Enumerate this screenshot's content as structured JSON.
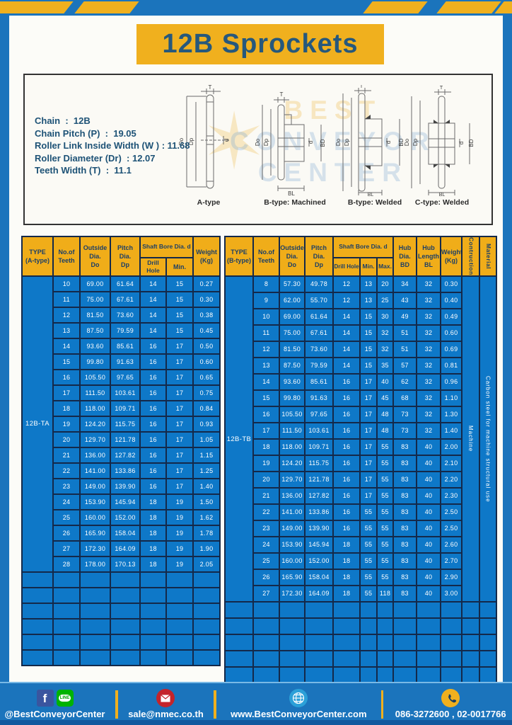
{
  "header": {
    "title": "12B Sprockets"
  },
  "specs": {
    "lines": [
      "Chain  :  12B",
      "Chain Pitch (P)  :  19.05",
      "Roller Link Inside Width (W ) : 11.68",
      "Roller Diameter (Dr)  : 12.07",
      "Teeth Width (T)  :  11.1"
    ]
  },
  "diagrams": {
    "labels": [
      "A-type",
      "B-type: Machined",
      "B-type: Welded",
      "C-type: Welded"
    ],
    "dims": {
      "t": "T",
      "do": "Do",
      "dp": "Dp",
      "d": "d",
      "bd": "BD",
      "bl": "BL"
    },
    "watermark": [
      "BEST",
      "CONVEYOR",
      "CENTER"
    ],
    "watermark_star": "✶"
  },
  "table_a": {
    "headers": {
      "type": [
        "TYPE",
        "(A-type)"
      ],
      "teeth": [
        "No.of",
        "Teeth"
      ],
      "outside": [
        "Outside",
        "Dia.",
        "Do"
      ],
      "pitch": [
        "Pitch Dia.",
        "Dp"
      ],
      "shaft_bore": "Shaft Bore Dia. d",
      "drill": "Drill Hole",
      "min": "Min.",
      "weight": [
        "Weight",
        "(Kg)"
      ]
    },
    "type_value": "12B-TA",
    "rows": [
      [
        "10",
        "69.00",
        "61.64",
        "14",
        "15",
        "0.27"
      ],
      [
        "11",
        "75.00",
        "67.61",
        "14",
        "15",
        "0.30"
      ],
      [
        "12",
        "81.50",
        "73.60",
        "14",
        "15",
        "0.38"
      ],
      [
        "13",
        "87.50",
        "79.59",
        "14",
        "15",
        "0.45"
      ],
      [
        "14",
        "93.60",
        "85.61",
        "16",
        "17",
        "0.50"
      ],
      [
        "15",
        "99.80",
        "91.63",
        "16",
        "17",
        "0.60"
      ],
      [
        "16",
        "105.50",
        "97.65",
        "16",
        "17",
        "0.65"
      ],
      [
        "17",
        "111.50",
        "103.61",
        "16",
        "17",
        "0.75"
      ],
      [
        "18",
        "118.00",
        "109.71",
        "16",
        "17",
        "0.84"
      ],
      [
        "19",
        "124.20",
        "115.75",
        "16",
        "17",
        "0.93"
      ],
      [
        "20",
        "129.70",
        "121.78",
        "16",
        "17",
        "1.05"
      ],
      [
        "21",
        "136.00",
        "127.82",
        "16",
        "17",
        "1.15"
      ],
      [
        "22",
        "141.00",
        "133.86",
        "16",
        "17",
        "1.25"
      ],
      [
        "23",
        "149.00",
        "139.90",
        "16",
        "17",
        "1.40"
      ],
      [
        "24",
        "153.90",
        "145.94",
        "18",
        "19",
        "1.50"
      ],
      [
        "25",
        "160.00",
        "152.00",
        "18",
        "19",
        "1.62"
      ],
      [
        "26",
        "165.90",
        "158.04",
        "18",
        "19",
        "1.78"
      ],
      [
        "27",
        "172.30",
        "164.09",
        "18",
        "19",
        "1.90"
      ],
      [
        "28",
        "178.00",
        "170.13",
        "18",
        "19",
        "2.05"
      ]
    ],
    "empty_rows": 6
  },
  "table_b": {
    "headers": {
      "type": [
        "TYPE",
        "(B-type)"
      ],
      "teeth": [
        "No.of",
        "Teeth"
      ],
      "outside": [
        "Outside",
        "Dia.",
        "Do"
      ],
      "pitch": [
        "Pitch Dia.",
        "Dp"
      ],
      "shaft_bore": "Shaft Bore Dia. d",
      "drill": "Drill Hole",
      "min": "Min.",
      "max": "Max.",
      "hub_dia": [
        "Hub Dia.",
        "BD"
      ],
      "hub_length": [
        "Hub",
        "Length",
        "BL"
      ],
      "weight": [
        "Weight",
        "(Kg)"
      ],
      "construction": "Contruction",
      "material": "Material"
    },
    "type_value": "12B-TB",
    "construction_value": "Machine",
    "material_value": "Carbon steel for machine structural use",
    "rows": [
      [
        "8",
        "57.30",
        "49.78",
        "12",
        "13",
        "20",
        "34",
        "32",
        "0.30"
      ],
      [
        "9",
        "62.00",
        "55.70",
        "12",
        "13",
        "25",
        "43",
        "32",
        "0.40"
      ],
      [
        "10",
        "69.00",
        "61.64",
        "14",
        "15",
        "30",
        "49",
        "32",
        "0.49"
      ],
      [
        "11",
        "75.00",
        "67.61",
        "14",
        "15",
        "32",
        "51",
        "32",
        "0.60"
      ],
      [
        "12",
        "81.50",
        "73.60",
        "14",
        "15",
        "32",
        "51",
        "32",
        "0.69"
      ],
      [
        "13",
        "87.50",
        "79.59",
        "14",
        "15",
        "35",
        "57",
        "32",
        "0.81"
      ],
      [
        "14",
        "93.60",
        "85.61",
        "16",
        "17",
        "40",
        "62",
        "32",
        "0.96"
      ],
      [
        "15",
        "99.80",
        "91.63",
        "16",
        "17",
        "45",
        "68",
        "32",
        "1.10"
      ],
      [
        "16",
        "105.50",
        "97.65",
        "16",
        "17",
        "48",
        "73",
        "32",
        "1.30"
      ],
      [
        "17",
        "111.50",
        "103.61",
        "16",
        "17",
        "48",
        "73",
        "32",
        "1.40"
      ],
      [
        "18",
        "118.00",
        "109.71",
        "16",
        "17",
        "55",
        "83",
        "40",
        "2.00"
      ],
      [
        "19",
        "124.20",
        "115.75",
        "16",
        "17",
        "55",
        "83",
        "40",
        "2.10"
      ],
      [
        "20",
        "129.70",
        "121.78",
        "16",
        "17",
        "55",
        "83",
        "40",
        "2.20"
      ],
      [
        "21",
        "136.00",
        "127.82",
        "16",
        "17",
        "55",
        "83",
        "40",
        "2.30"
      ],
      [
        "22",
        "141.00",
        "133.86",
        "16",
        "55",
        "55",
        "83",
        "40",
        "2.50"
      ],
      [
        "23",
        "149.00",
        "139.90",
        "16",
        "55",
        "55",
        "83",
        "40",
        "2.50"
      ],
      [
        "24",
        "153.90",
        "145.94",
        "18",
        "55",
        "55",
        "83",
        "40",
        "2.60"
      ],
      [
        "25",
        "160.00",
        "152.00",
        "18",
        "55",
        "55",
        "83",
        "40",
        "2.70"
      ],
      [
        "26",
        "165.90",
        "158.04",
        "18",
        "55",
        "55",
        "83",
        "40",
        "2.90"
      ],
      [
        "27",
        "172.30",
        "164.09",
        "18",
        "55",
        "118",
        "83",
        "40",
        "3.00"
      ]
    ],
    "empty_rows": 5
  },
  "footer": {
    "fb_letter": "f",
    "line_badge": "LINE",
    "social": "@BestConveyorCenter",
    "email": "sale@nmec.co.th",
    "website": "www.BestConveyorCenter.com",
    "phone": "086-3272600 , 02-0017766"
  },
  "colors": {
    "accent_yellow": "#f0b01e",
    "frame_blue": "#1b74bc",
    "table_blue": "#0e78c8",
    "header_text_navy": "#1d3f66",
    "banner_text": "#26587c"
  }
}
